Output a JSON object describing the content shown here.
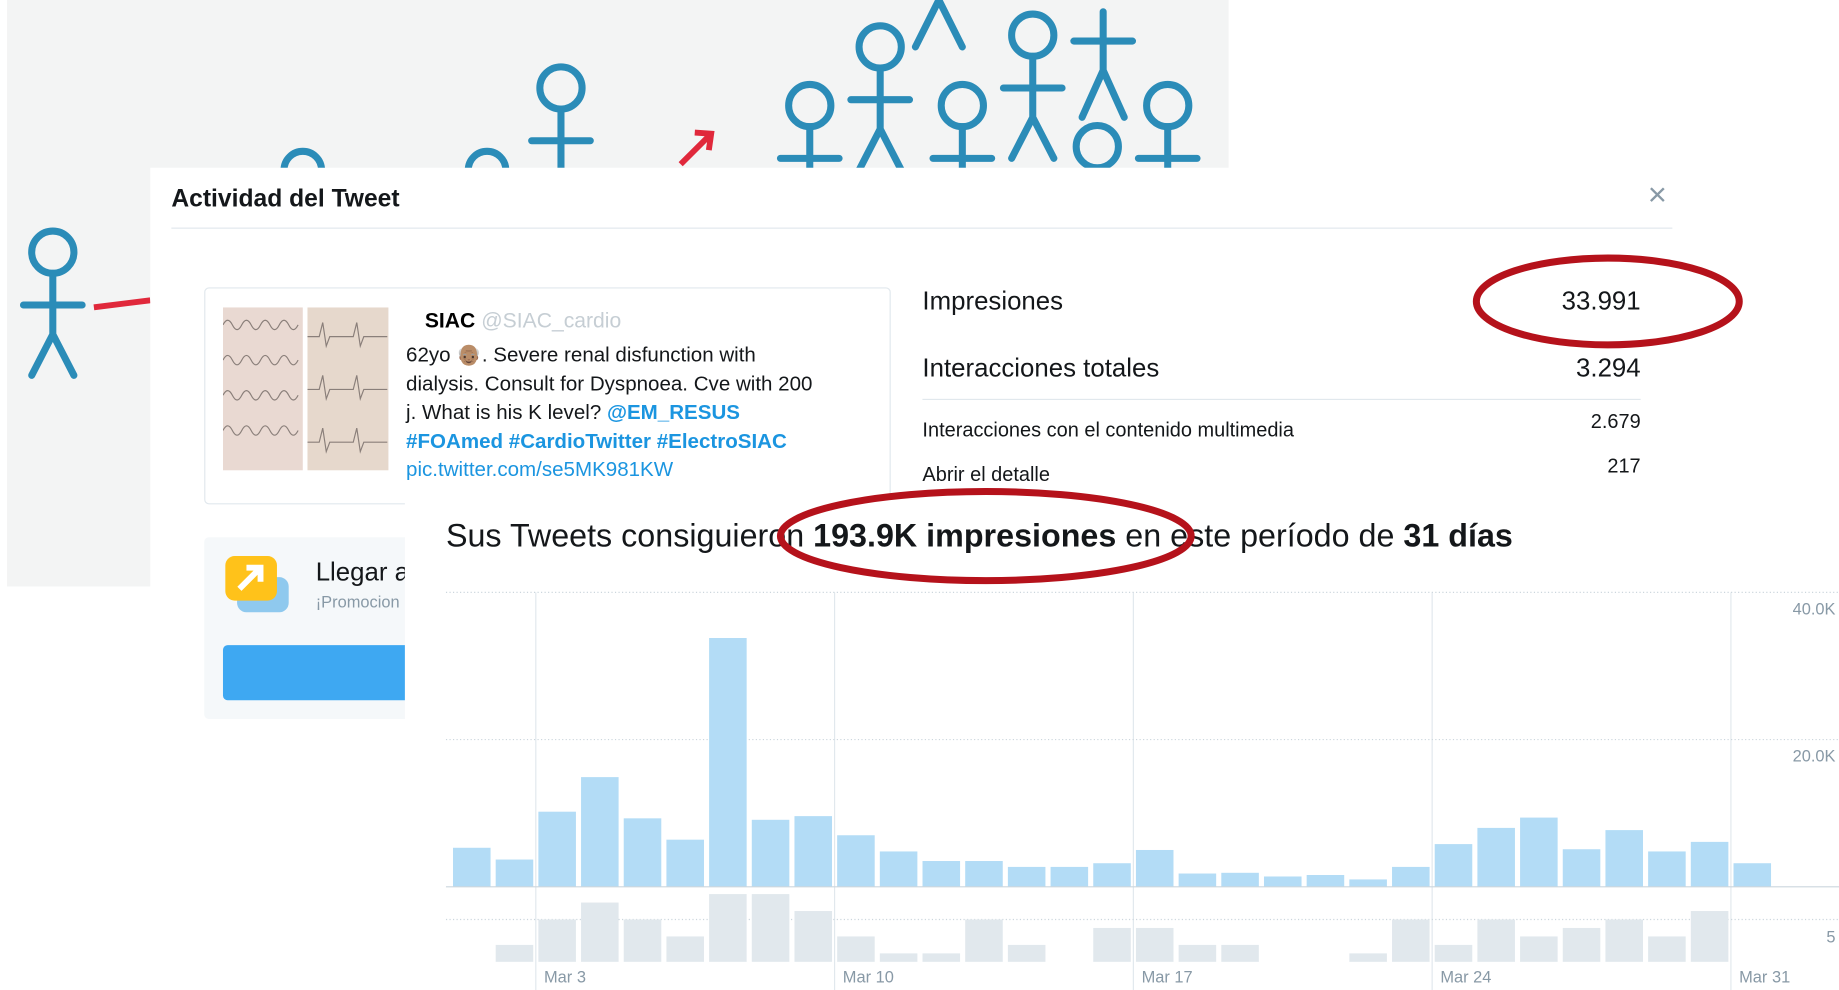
{
  "header": {
    "title": "Actividad del Tweet",
    "close": "×"
  },
  "tweet": {
    "author": "SIAC",
    "handle": "@SIAC_cardio",
    "lines": [
      "62yo 👴🏽. Severe renal disfunction with",
      "dialysis. Consult for Dyspnoea. Cve with 200",
      "j.  What is his K level?"
    ],
    "mention": "@EM_RESUS",
    "hashtags": "#FOAmed #CardioTwitter #ElectroSIAC",
    "link": "pic.twitter.com/se5MK981KW"
  },
  "metrics": [
    {
      "label": "Impresiones",
      "value": "33.991"
    },
    {
      "label": "Interacciones totales",
      "value": "3.294"
    },
    {
      "label": "Interacciones con el contenido multimedia",
      "value": "2.679"
    },
    {
      "label": "Abrir el detalle",
      "value": "217"
    }
  ],
  "promo": {
    "title": "Llegar a",
    "subtitle": "¡Promocion"
  },
  "summary": {
    "prefix": "Sus Tweets consiguieron",
    "impressions": "193.9K impresiones",
    "middle": "en este período de",
    "days": "31 días"
  },
  "chart": {
    "type": "bar",
    "categories": [
      null,
      null,
      "Mar 3",
      null,
      null,
      null,
      null,
      null,
      null,
      "Mar 10",
      null,
      null,
      null,
      null,
      null,
      null,
      "Mar 17",
      null,
      null,
      null,
      null,
      null,
      null,
      "Mar 24",
      null,
      null,
      null,
      null,
      null,
      null,
      "Mar 31"
    ],
    "series": [
      {
        "color": "#b3dcf6",
        "values": [
          5300,
          3700,
          10200,
          14900,
          9300,
          6400,
          33800,
          9100,
          9600,
          7000,
          4800,
          3500,
          3500,
          2700,
          2700,
          3200,
          5000,
          1800,
          1900,
          1400,
          1600,
          1000,
          2700,
          5800,
          8000,
          9400,
          5100,
          7700,
          4800,
          6100,
          3200
        ]
      },
      {
        "color": "#e1e8ed",
        "axis": "y2",
        "values": [
          0,
          2,
          5,
          7,
          5,
          3,
          8,
          8,
          6,
          3,
          1,
          1,
          5,
          2,
          0,
          4,
          4,
          2,
          2,
          0,
          0,
          1,
          5,
          2,
          5,
          3,
          4,
          5,
          3,
          6,
          0
        ]
      }
    ],
    "ylim": [
      0,
      40000
    ],
    "yticks": [
      {
        "value": 20000,
        "label": "20.0K"
      },
      {
        "value": 40000,
        "label": "40.0K"
      }
    ],
    "y2lim": [
      0,
      9
    ],
    "y2ticks": [
      5
    ],
    "grid": true
  }
}
